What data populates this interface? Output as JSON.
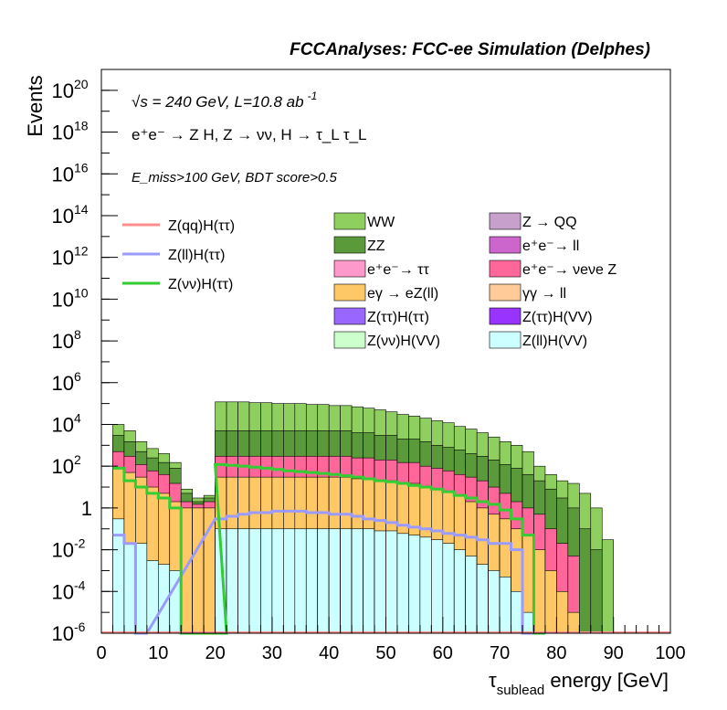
{
  "header": {
    "title": "FCCAnalyses: FCC-ee Simulation (Delphes)"
  },
  "annotations": {
    "line1": "√s = 240 GeV, L=10.8 ab",
    "line1_sup": "-1",
    "line2": "e⁺e⁻ → Z H, Z → νν, H → τ_L τ_L",
    "line3": "E_miss>100 GeV, BDT score>0.5"
  },
  "chart_data": {
    "type": "bar",
    "stacked": true,
    "xlabel": "τ_sublead energy [GeV]",
    "ylabel": "Events",
    "xlim": [
      0,
      100
    ],
    "ylim": [
      1e-06,
      1e+21
    ],
    "log_y": true,
    "bin_width": 2,
    "x_ticks": [
      0,
      10,
      20,
      30,
      40,
      50,
      60,
      70,
      80,
      90,
      100
    ],
    "y_ticks": [
      {
        "value": 1e-06,
        "base": "10",
        "exp": "-6"
      },
      {
        "value": 0.0001,
        "base": "10",
        "exp": "-4"
      },
      {
        "value": 0.01,
        "base": "10",
        "exp": "-2"
      },
      {
        "value": 1,
        "base": "1",
        "exp": ""
      },
      {
        "value": 100.0,
        "base": "10",
        "exp": "2"
      },
      {
        "value": 10000.0,
        "base": "10",
        "exp": "4"
      },
      {
        "value": 1000000.0,
        "base": "10",
        "exp": "6"
      },
      {
        "value": 100000000.0,
        "base": "10",
        "exp": "8"
      },
      {
        "value": 10000000000.0,
        "base": "10",
        "exp": "10"
      },
      {
        "value": 1000000000000.0,
        "base": "10",
        "exp": "12"
      },
      {
        "value": 100000000000000.0,
        "base": "10",
        "exp": "14"
      },
      {
        "value": 1e+16,
        "base": "10",
        "exp": "16"
      },
      {
        "value": 1e+18,
        "base": "10",
        "exp": "18"
      },
      {
        "value": 1e+20,
        "base": "10",
        "exp": "20"
      }
    ],
    "stack_totals": [
      {
        "x0": 2,
        "levels": [
          10000.0,
          3000.0,
          500,
          80,
          0.3
        ]
      },
      {
        "x0": 4,
        "levels": [
          5000.0,
          1500.0,
          300,
          50,
          0.02
        ]
      },
      {
        "x0": 6,
        "levels": [
          1500.0,
          500,
          120,
          30,
          0.02
        ]
      },
      {
        "x0": 8,
        "levels": [
          700,
          250,
          60,
          10,
          0.003
        ]
      },
      {
        "x0": 10,
        "levels": [
          400,
          150,
          40,
          5,
          0.002
        ]
      },
      {
        "x0": 12,
        "levels": [
          150,
          80,
          15,
          2,
          0.001
        ]
      },
      {
        "x0": 14,
        "levels": [
          8,
          5,
          2,
          1,
          1e-06
        ]
      },
      {
        "x0": 16,
        "levels": [
          3,
          2,
          1.5,
          1,
          1e-06
        ]
      },
      {
        "x0": 18,
        "levels": [
          4,
          3,
          2,
          1,
          1e-06
        ]
      },
      {
        "x0": 20,
        "levels": [
          1.5,
          1,
          0.5,
          0.3,
          1e-06
        ]
      },
      {
        "x0": 20,
        "levels": [
          120000.0,
          5000.0,
          300,
          30,
          0.1
        ]
      },
      {
        "x0": 22,
        "levels": [
          120000.0,
          5000.0,
          300,
          30,
          0.1
        ]
      },
      {
        "x0": 24,
        "levels": [
          120000.0,
          5000.0,
          300,
          30,
          0.1
        ]
      },
      {
        "x0": 26,
        "levels": [
          110000.0,
          5000.0,
          300,
          30,
          0.1
        ]
      },
      {
        "x0": 28,
        "levels": [
          110000.0,
          5000.0,
          300,
          30,
          0.1
        ]
      },
      {
        "x0": 30,
        "levels": [
          100000.0,
          5000.0,
          300,
          30,
          0.1
        ]
      },
      {
        "x0": 32,
        "levels": [
          100000.0,
          5000.0,
          300,
          30,
          0.1
        ]
      },
      {
        "x0": 34,
        "levels": [
          100000.0,
          5000.0,
          300,
          30,
          0.1
        ]
      },
      {
        "x0": 36,
        "levels": [
          90000.0,
          5000.0,
          300,
          30,
          0.1
        ]
      },
      {
        "x0": 38,
        "levels": [
          90000.0,
          5000.0,
          300,
          30,
          0.1
        ]
      },
      {
        "x0": 40,
        "levels": [
          80000.0,
          5000.0,
          300,
          30,
          0.1
        ]
      },
      {
        "x0": 42,
        "levels": [
          80000.0,
          5000.0,
          300,
          30,
          0.1
        ]
      },
      {
        "x0": 44,
        "levels": [
          70000.0,
          4000.0,
          250,
          25,
          0.1
        ]
      },
      {
        "x0": 46,
        "levels": [
          60000.0,
          4000.0,
          250,
          25,
          0.1
        ]
      },
      {
        "x0": 48,
        "levels": [
          50000.0,
          3000.0,
          200,
          20,
          0.08
        ]
      },
      {
        "x0": 50,
        "levels": [
          40000.0,
          3000.0,
          200,
          20,
          0.08
        ]
      },
      {
        "x0": 52,
        "levels": [
          30000.0,
          2000.0,
          150,
          15,
          0.06
        ]
      },
      {
        "x0": 54,
        "levels": [
          25000.0,
          2000.0,
          150,
          15,
          0.05
        ]
      },
      {
        "x0": 56,
        "levels": [
          20000.0,
          1500.0,
          100,
          10,
          0.04
        ]
      },
      {
        "x0": 58,
        "levels": [
          15000.0,
          1000.0,
          80,
          8,
          0.03
        ]
      },
      {
        "x0": 60,
        "levels": [
          12000.0,
          800,
          60,
          6,
          0.02
        ]
      },
      {
        "x0": 62,
        "levels": [
          8000.0,
          600,
          40,
          4,
          0.01
        ]
      },
      {
        "x0": 64,
        "levels": [
          6000.0,
          400,
          30,
          2,
          0.005
        ]
      },
      {
        "x0": 66,
        "levels": [
          4000.0,
          300,
          20,
          1,
          0.002
        ]
      },
      {
        "x0": 68,
        "levels": [
          2500.0,
          200,
          10,
          0.5,
          0.001
        ]
      },
      {
        "x0": 70,
        "levels": [
          1500.0,
          120,
          5,
          0.3,
          0.0005
        ]
      },
      {
        "x0": 72,
        "levels": [
          1000.0,
          80,
          2,
          0.1,
          0.0001
        ]
      },
      {
        "x0": 74,
        "levels": [
          500,
          40,
          1,
          0.05,
          1e-05
        ]
      },
      {
        "x0": 76,
        "levels": [
          100,
          20,
          0.5,
          0.01,
          1e-06
        ]
      },
      {
        "x0": 78,
        "levels": [
          40,
          8,
          0.1,
          0.001,
          1e-06
        ]
      },
      {
        "x0": 80,
        "levels": [
          20,
          3,
          0.02,
          0.0001,
          1e-06
        ]
      },
      {
        "x0": 82,
        "levels": [
          15,
          1,
          0.005,
          1e-05,
          1e-06
        ]
      },
      {
        "x0": 84,
        "levels": [
          5,
          0.1,
          1e-06,
          1e-06,
          1e-06
        ]
      },
      {
        "x0": 86,
        "levels": [
          1,
          0.01,
          1e-06,
          1e-06,
          1e-06
        ]
      },
      {
        "x0": 88,
        "levels": [
          0.03,
          1e-06,
          1e-06,
          1e-06,
          1e-06
        ]
      }
    ],
    "signal_vvtt": [
      {
        "x0": 2,
        "y": 80
      },
      {
        "x0": 4,
        "y": 20
      },
      {
        "x0": 6,
        "y": 10
      },
      {
        "x0": 8,
        "y": 5
      },
      {
        "x0": 10,
        "y": 3
      },
      {
        "x0": 12,
        "y": 1
      },
      {
        "x0": 14,
        "y": 1e-06
      },
      {
        "x0": 16,
        "y": 1e-06
      },
      {
        "x0": 18,
        "y": 1e-06
      },
      {
        "x0": 20,
        "y": 1e-06
      },
      {
        "x0": 20,
        "y": 120
      },
      {
        "x0": 22,
        "y": 110
      },
      {
        "x0": 24,
        "y": 100
      },
      {
        "x0": 26,
        "y": 90
      },
      {
        "x0": 28,
        "y": 80
      },
      {
        "x0": 30,
        "y": 70
      },
      {
        "x0": 32,
        "y": 60
      },
      {
        "x0": 34,
        "y": 55
      },
      {
        "x0": 36,
        "y": 50
      },
      {
        "x0": 38,
        "y": 45
      },
      {
        "x0": 40,
        "y": 40
      },
      {
        "x0": 42,
        "y": 35
      },
      {
        "x0": 44,
        "y": 30
      },
      {
        "x0": 46,
        "y": 25
      },
      {
        "x0": 48,
        "y": 20
      },
      {
        "x0": 50,
        "y": 18
      },
      {
        "x0": 52,
        "y": 15
      },
      {
        "x0": 54,
        "y": 12
      },
      {
        "x0": 56,
        "y": 10
      },
      {
        "x0": 58,
        "y": 8
      },
      {
        "x0": 60,
        "y": 6
      },
      {
        "x0": 62,
        "y": 4
      },
      {
        "x0": 64,
        "y": 3
      },
      {
        "x0": 66,
        "y": 2
      },
      {
        "x0": 68,
        "y": 1.5
      },
      {
        "x0": 70,
        "y": 0.8
      },
      {
        "x0": 72,
        "y": 0.3
      },
      {
        "x0": 74,
        "y": 0.05
      },
      {
        "x0": 76,
        "y": 1e-06
      }
    ],
    "signal_lltt": [
      {
        "x0": 2,
        "y": 0.05
      },
      {
        "x0": 4,
        "y": 0.02
      },
      {
        "x0": 6,
        "y": 1e-06
      },
      {
        "x0": 20,
        "y": 0.3
      },
      {
        "x0": 22,
        "y": 0.4
      },
      {
        "x0": 24,
        "y": 0.5
      },
      {
        "x0": 26,
        "y": 0.6
      },
      {
        "x0": 28,
        "y": 0.6
      },
      {
        "x0": 30,
        "y": 0.7
      },
      {
        "x0": 32,
        "y": 0.7
      },
      {
        "x0": 34,
        "y": 0.7
      },
      {
        "x0": 36,
        "y": 0.6
      },
      {
        "x0": 38,
        "y": 0.6
      },
      {
        "x0": 40,
        "y": 0.5
      },
      {
        "x0": 42,
        "y": 0.5
      },
      {
        "x0": 44,
        "y": 0.4
      },
      {
        "x0": 46,
        "y": 0.3
      },
      {
        "x0": 48,
        "y": 0.25
      },
      {
        "x0": 50,
        "y": 0.2
      },
      {
        "x0": 52,
        "y": 0.15
      },
      {
        "x0": 54,
        "y": 0.12
      },
      {
        "x0": 56,
        "y": 0.1
      },
      {
        "x0": 58,
        "y": 0.08
      },
      {
        "x0": 60,
        "y": 0.06
      },
      {
        "x0": 62,
        "y": 0.05
      },
      {
        "x0": 64,
        "y": 0.04
      },
      {
        "x0": 66,
        "y": 0.03
      },
      {
        "x0": 68,
        "y": 0.02
      },
      {
        "x0": 70,
        "y": 0.02
      },
      {
        "x0": 72,
        "y": 0.01
      },
      {
        "x0": 74,
        "y": 1e-06
      }
    ],
    "legend_lines": [
      {
        "label": "Z(qq)H(ττ)",
        "color": "#ff8c8c"
      },
      {
        "label": "Z(ll)H(ττ)",
        "color": "#9a9aff"
      },
      {
        "label": "Z(νν)H(ττ)",
        "color": "#33cc33"
      }
    ],
    "legend_fills": [
      {
        "label": "WW",
        "color": "#8fcf5f"
      },
      {
        "label": "Z → QQ",
        "color": "#c8a0cc"
      },
      {
        "label": "ZZ",
        "color": "#5a9a3a"
      },
      {
        "label": "e⁺e⁻→ ll",
        "color": "#cc66cc"
      },
      {
        "label": "e⁺e⁻→ ττ",
        "color": "#ff99cc"
      },
      {
        "label": "e⁺e⁻→ νeνe Z",
        "color": "#ff6699"
      },
      {
        "label": "eγ → eZ(ll)",
        "color": "#ffc866"
      },
      {
        "label": "γγ → ll",
        "color": "#ffcc99"
      },
      {
        "label": "Z(ττ)H(ττ)",
        "color": "#9966ff"
      },
      {
        "label": "Z(ττ)H(VV)",
        "color": "#9933ff"
      },
      {
        "label": "Z(νν)H(VV)",
        "color": "#ccffcc"
      },
      {
        "label": "Z(ll)H(VV)",
        "color": "#ccffff"
      }
    ]
  }
}
